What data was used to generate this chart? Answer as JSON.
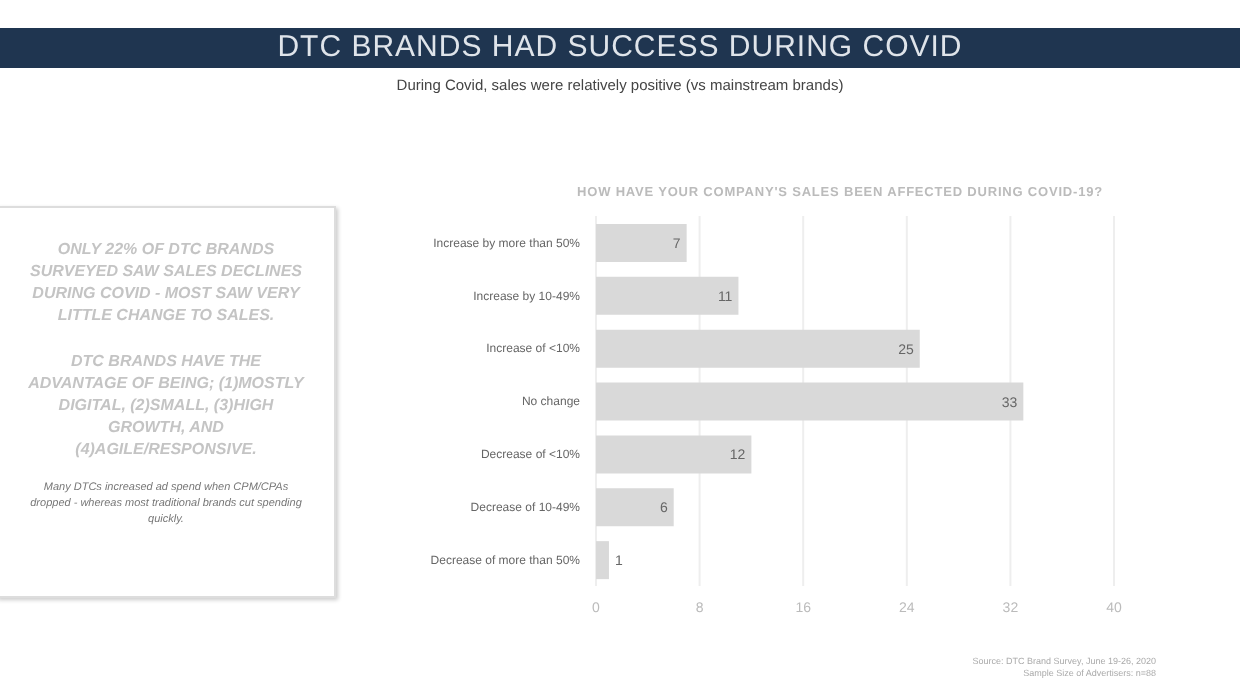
{
  "chart_data": {
    "type": "bar",
    "orientation": "horizontal",
    "title": "DTC BRANDS HAD SUCCESS DURING COVID",
    "subtitle": "During Covid, sales were relatively positive (vs mainstream brands)",
    "annotations": [
      "HOW HAVE YOUR COMPANY'S SALES BEEN AFFECTED DURING COVID-19?",
      "ONLY 22% OF DTC BRANDS SURVEYED SAW SALES DECLINES DURING COVID - MOST SAW VERY LITTLE CHANGE TO SALES.",
      "DTC BRANDS HAVE THE ADVANTAGE OF BEING; (1)MOSTLY DIGITAL, (2)SMALL, (3)HIGH GROWTH, AND (4)AGILE/RESPONSIVE.",
      "Many DTCs increased ad spend when CPM/CPAs dropped - whereas most traditional brands cut spending quickly.",
      "Source: DTC Brand Survey, June 19-26, 2020",
      "Sample Size of Advertisers: n=88"
    ],
    "categories": [
      "Increase by more than 50%",
      "Increase by 10-49%",
      "Increase of <10%",
      "No change",
      "Decrease of <10%",
      "Decrease of 10-49%",
      "Decrease of more than 50%"
    ],
    "values": [
      7,
      11,
      25,
      33,
      12,
      6,
      1
    ],
    "color": "#d9d9d9",
    "data_labels": true,
    "xlim": [
      0,
      40
    ],
    "xticks": [
      0,
      8,
      16,
      24,
      32,
      40
    ],
    "grid": "x"
  }
}
